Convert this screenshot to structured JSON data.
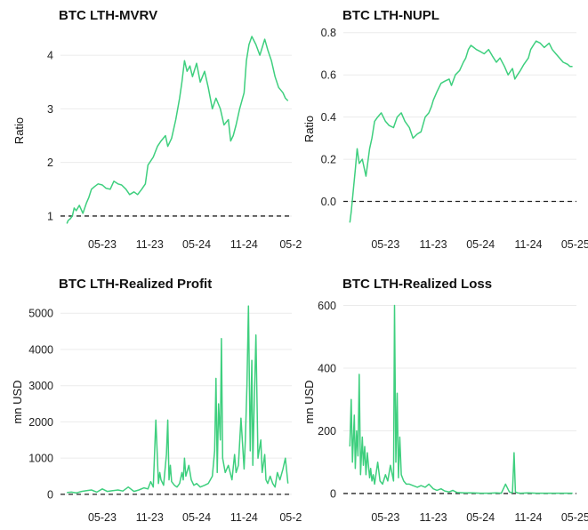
{
  "chart_data": [
    {
      "type": "line",
      "title": "BTC LTH-MVRV",
      "ylabel": "Ratio",
      "xlabel": "",
      "x_tick_labels": [
        "05-23",
        "11-23",
        "05-24",
        "11-24",
        "05-2"
      ],
      "y_ticks": [
        1,
        2,
        3,
        4
      ],
      "ylim": [
        0.8,
        4.5
      ],
      "xlim": [
        "2022-11-20",
        "2025-05-05"
      ],
      "reference_line": 1,
      "grid": "horizontal",
      "series": [
        {
          "color": "#3ecf7e",
          "x": [
            "2022-12-15",
            "2022-12-20",
            "2022-12-28",
            "2023-01-05",
            "2023-01-12",
            "2023-01-20",
            "2023-02-01",
            "2023-02-15",
            "2023-03-01",
            "2023-03-10",
            "2023-03-20",
            "2023-04-01",
            "2023-04-15",
            "2023-05-01",
            "2023-05-15",
            "2023-06-01",
            "2023-06-15",
            "2023-07-01",
            "2023-07-15",
            "2023-08-01",
            "2023-08-15",
            "2023-09-01",
            "2023-09-15",
            "2023-10-01",
            "2023-10-15",
            "2023-10-25",
            "2023-11-01",
            "2023-11-15",
            "2023-12-01",
            "2023-12-15",
            "2024-01-01",
            "2024-01-10",
            "2024-01-25",
            "2024-02-10",
            "2024-02-25",
            "2024-03-05",
            "2024-03-15",
            "2024-03-25",
            "2024-04-05",
            "2024-04-15",
            "2024-05-01",
            "2024-05-15",
            "2024-06-01",
            "2024-06-15",
            "2024-07-01",
            "2024-07-15",
            "2024-08-01",
            "2024-08-15",
            "2024-09-01",
            "2024-09-10",
            "2024-09-20",
            "2024-10-01",
            "2024-10-15",
            "2024-11-01",
            "2024-11-10",
            "2024-11-20",
            "2024-12-01",
            "2024-12-17",
            "2025-01-01",
            "2025-01-20",
            "2025-02-01",
            "2025-02-15",
            "2025-03-01",
            "2025-03-15",
            "2025-04-01",
            "2025-04-10",
            "2025-04-20"
          ],
          "values": [
            0.86,
            0.92,
            0.95,
            1.0,
            1.15,
            1.1,
            1.2,
            1.05,
            1.25,
            1.35,
            1.5,
            1.55,
            1.6,
            1.58,
            1.52,
            1.5,
            1.65,
            1.6,
            1.58,
            1.5,
            1.4,
            1.45,
            1.4,
            1.5,
            1.6,
            1.95,
            2.0,
            2.1,
            2.3,
            2.4,
            2.5,
            2.3,
            2.45,
            2.8,
            3.2,
            3.5,
            3.9,
            3.7,
            3.8,
            3.6,
            3.85,
            3.5,
            3.7,
            3.4,
            3.0,
            3.2,
            3.0,
            2.7,
            2.8,
            2.4,
            2.5,
            2.7,
            3.0,
            3.3,
            3.9,
            4.2,
            4.35,
            4.2,
            4.0,
            4.3,
            4.1,
            3.9,
            3.6,
            3.4,
            3.3,
            3.2,
            3.15
          ]
        }
      ]
    },
    {
      "type": "line",
      "title": "BTC LTH-NUPL",
      "ylabel": "Ratio",
      "xlabel": "",
      "x_tick_labels": [
        "05-23",
        "11-23",
        "05-24",
        "11-24",
        "05-25"
      ],
      "y_ticks": [
        "0.0",
        "0.2",
        "0.4",
        "0.6",
        "0.8"
      ],
      "ylim": [
        -0.12,
        0.82
      ],
      "xlim": [
        "2022-11-20",
        "2025-05-05"
      ],
      "reference_line": 0,
      "grid": "horizontal",
      "series": [
        {
          "color": "#3ecf7e",
          "x": [
            "2022-12-15",
            "2022-12-20",
            "2022-12-28",
            "2023-01-05",
            "2023-01-12",
            "2023-01-20",
            "2023-02-01",
            "2023-02-15",
            "2023-03-01",
            "2023-03-10",
            "2023-03-20",
            "2023-04-01",
            "2023-04-15",
            "2023-05-01",
            "2023-05-15",
            "2023-06-01",
            "2023-06-15",
            "2023-07-01",
            "2023-07-15",
            "2023-08-01",
            "2023-08-15",
            "2023-09-01",
            "2023-09-15",
            "2023-10-01",
            "2023-10-15",
            "2023-10-25",
            "2023-11-01",
            "2023-11-15",
            "2023-12-01",
            "2023-12-15",
            "2024-01-01",
            "2024-01-10",
            "2024-01-25",
            "2024-02-10",
            "2024-02-25",
            "2024-03-05",
            "2024-03-15",
            "2024-03-25",
            "2024-04-05",
            "2024-04-15",
            "2024-05-01",
            "2024-05-15",
            "2024-06-01",
            "2024-06-15",
            "2024-07-01",
            "2024-07-15",
            "2024-08-01",
            "2024-08-15",
            "2024-09-01",
            "2024-09-10",
            "2024-09-20",
            "2024-10-01",
            "2024-10-15",
            "2024-11-01",
            "2024-11-10",
            "2024-11-20",
            "2024-12-01",
            "2024-12-17",
            "2025-01-01",
            "2025-01-20",
            "2025-02-01",
            "2025-02-15",
            "2025-03-01",
            "2025-03-15",
            "2025-04-01",
            "2025-04-10",
            "2025-04-20"
          ],
          "values": [
            -0.1,
            -0.05,
            0.05,
            0.15,
            0.25,
            0.18,
            0.2,
            0.12,
            0.25,
            0.3,
            0.38,
            0.4,
            0.42,
            0.38,
            0.36,
            0.35,
            0.4,
            0.42,
            0.38,
            0.35,
            0.3,
            0.32,
            0.33,
            0.4,
            0.42,
            0.45,
            0.48,
            0.52,
            0.56,
            0.57,
            0.58,
            0.55,
            0.6,
            0.62,
            0.66,
            0.68,
            0.72,
            0.74,
            0.73,
            0.72,
            0.71,
            0.7,
            0.72,
            0.69,
            0.66,
            0.68,
            0.64,
            0.6,
            0.63,
            0.58,
            0.6,
            0.62,
            0.65,
            0.68,
            0.72,
            0.74,
            0.76,
            0.75,
            0.73,
            0.75,
            0.72,
            0.7,
            0.68,
            0.66,
            0.65,
            0.64,
            0.64
          ]
        }
      ]
    },
    {
      "type": "line",
      "title": "BTC LTH-Realized Profit",
      "ylabel": "mn USD",
      "xlabel": "",
      "x_tick_labels": [
        "05-23",
        "11-23",
        "05-24",
        "11-24",
        "05-2"
      ],
      "y_ticks": [
        0,
        1000,
        2000,
        3000,
        4000,
        5000
      ],
      "ylim": [
        -150,
        5300
      ],
      "xlim": [
        "2022-11-20",
        "2025-05-05"
      ],
      "reference_line": 0,
      "grid": "horizontal",
      "series": [
        {
          "color": "#3ecf7e",
          "x": [
            "2022-12-15",
            "2023-01-01",
            "2023-01-20",
            "2023-02-10",
            "2023-03-01",
            "2023-03-20",
            "2023-04-10",
            "2023-05-01",
            "2023-05-20",
            "2023-06-10",
            "2023-07-01",
            "2023-07-20",
            "2023-08-10",
            "2023-09-01",
            "2023-09-20",
            "2023-10-10",
            "2023-10-25",
            "2023-11-05",
            "2023-11-15",
            "2023-11-25",
            "2023-12-05",
            "2023-12-10",
            "2023-12-15",
            "2023-12-25",
            "2024-01-05",
            "2024-01-10",
            "2024-01-15",
            "2024-01-20",
            "2024-01-25",
            "2024-02-05",
            "2024-02-15",
            "2024-02-25",
            "2024-03-05",
            "2024-03-10",
            "2024-03-15",
            "2024-03-20",
            "2024-04-01",
            "2024-04-10",
            "2024-04-20",
            "2024-05-01",
            "2024-05-15",
            "2024-06-01",
            "2024-06-15",
            "2024-07-01",
            "2024-07-10",
            "2024-07-15",
            "2024-07-20",
            "2024-07-25",
            "2024-08-01",
            "2024-08-05",
            "2024-08-10",
            "2024-08-20",
            "2024-09-01",
            "2024-09-15",
            "2024-09-25",
            "2024-10-01",
            "2024-10-10",
            "2024-10-20",
            "2024-11-01",
            "2024-11-06",
            "2024-11-12",
            "2024-11-18",
            "2024-11-25",
            "2024-12-01",
            "2024-12-05",
            "2024-12-10",
            "2024-12-17",
            "2024-12-25",
            "2025-01-05",
            "2025-01-10",
            "2025-01-20",
            "2025-01-25",
            "2025-02-01",
            "2025-02-10",
            "2025-02-20",
            "2025-03-01",
            "2025-03-10",
            "2025-03-20",
            "2025-04-01",
            "2025-04-10",
            "2025-04-20"
          ],
          "values": [
            50,
            60,
            40,
            80,
            100,
            120,
            60,
            150,
            80,
            100,
            120,
            90,
            200,
            80,
            120,
            180,
            150,
            350,
            200,
            2050,
            300,
            600,
            400,
            250,
            1100,
            2050,
            400,
            800,
            350,
            250,
            200,
            300,
            600,
            400,
            1000,
            500,
            800,
            400,
            250,
            300,
            200,
            250,
            300,
            500,
            1200,
            3200,
            600,
            2500,
            1500,
            4300,
            1000,
            600,
            800,
            400,
            1100,
            600,
            800,
            2100,
            700,
            1500,
            3000,
            5200,
            1200,
            3700,
            800,
            2400,
            4400,
            1000,
            1500,
            600,
            1100,
            400,
            300,
            500,
            300,
            200,
            600,
            400,
            700,
            1000,
            300
          ]
        }
      ]
    },
    {
      "type": "line",
      "title": "BTC LTH-Realized Loss",
      "ylabel": "mn USD",
      "xlabel": "",
      "x_tick_labels": [
        "05-23",
        "11-23",
        "05-24",
        "11-24",
        "05-25"
      ],
      "y_ticks": [
        0,
        200,
        400,
        600
      ],
      "ylim": [
        -20,
        610
      ],
      "xlim": [
        "2022-11-20",
        "2025-05-05"
      ],
      "reference_line": 0,
      "grid": "horizontal",
      "series": [
        {
          "color": "#3ecf7e",
          "x": [
            "2022-12-15",
            "2022-12-20",
            "2022-12-25",
            "2023-01-01",
            "2023-01-05",
            "2023-01-10",
            "2023-01-15",
            "2023-01-20",
            "2023-01-25",
            "2023-02-01",
            "2023-02-05",
            "2023-02-10",
            "2023-02-15",
            "2023-02-20",
            "2023-03-01",
            "2023-03-05",
            "2023-03-10",
            "2023-03-15",
            "2023-03-20",
            "2023-04-01",
            "2023-04-10",
            "2023-04-20",
            "2023-05-01",
            "2023-05-10",
            "2023-05-20",
            "2023-06-01",
            "2023-06-05",
            "2023-06-10",
            "2023-06-15",
            "2023-06-20",
            "2023-06-25",
            "2023-07-01",
            "2023-07-10",
            "2023-07-20",
            "2023-08-01",
            "2023-08-15",
            "2023-09-01",
            "2023-09-15",
            "2023-10-01",
            "2023-10-15",
            "2023-11-01",
            "2023-11-15",
            "2023-12-01",
            "2023-12-15",
            "2024-01-01",
            "2024-01-15",
            "2024-02-01",
            "2024-03-01",
            "2024-04-01",
            "2024-05-01",
            "2024-06-01",
            "2024-07-01",
            "2024-07-20",
            "2024-08-05",
            "2024-08-20",
            "2024-09-01",
            "2024-09-07",
            "2024-09-12",
            "2024-09-20",
            "2024-10-01",
            "2024-11-01",
            "2024-12-01",
            "2025-01-01",
            "2025-02-01",
            "2025-03-01",
            "2025-04-01",
            "2025-04-20"
          ],
          "values": [
            150,
            300,
            100,
            250,
            80,
            200,
            120,
            380,
            60,
            180,
            90,
            150,
            60,
            130,
            50,
            80,
            40,
            60,
            30,
            100,
            40,
            30,
            60,
            40,
            90,
            40,
            600,
            100,
            320,
            50,
            180,
            60,
            40,
            30,
            30,
            25,
            20,
            25,
            20,
            30,
            15,
            10,
            15,
            8,
            5,
            10,
            3,
            2,
            2,
            1,
            1,
            2,
            1,
            30,
            5,
            2,
            130,
            5,
            2,
            1,
            2,
            1,
            1,
            1,
            1,
            1,
            1
          ]
        }
      ]
    }
  ]
}
